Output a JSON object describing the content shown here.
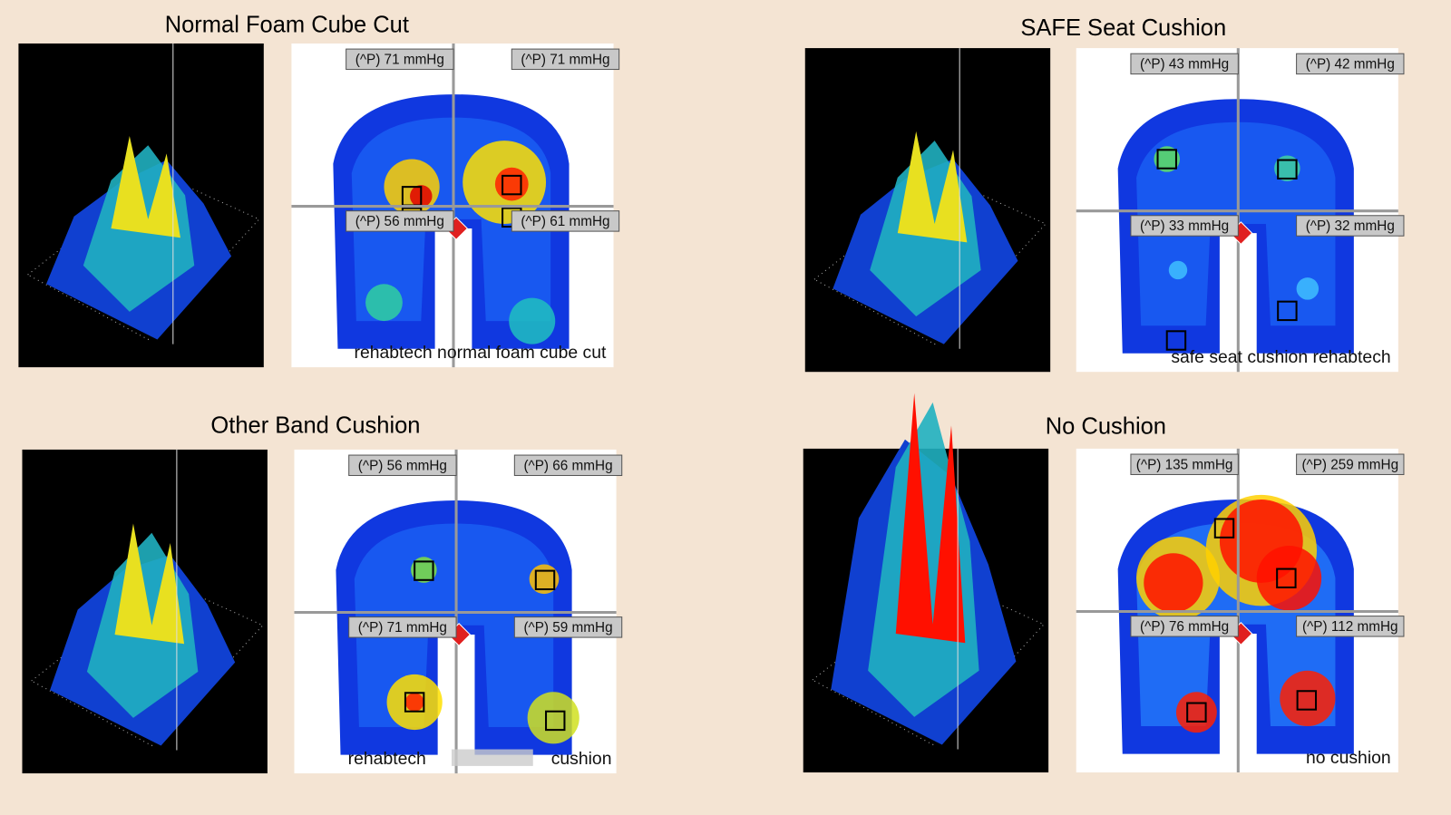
{
  "panels": [
    {
      "title": "Normal Foam Cube Cut",
      "readings": [
        "(^P) 71 mmHg",
        "(^P) 71 mmHg",
        "(^P) 56 mmHg",
        "(^P) 61 mmHg"
      ],
      "caption": [
        "rehabtech normal foam cube cut"
      ]
    },
    {
      "title": "SAFE Seat Cushion",
      "readings": [
        "(^P) 43 mmHg",
        "(^P) 42 mmHg",
        "(^P) 33 mmHg",
        "(^P) 32 mmHg"
      ],
      "caption": [
        "safe seat cushion rehabtech"
      ]
    },
    {
      "title": "Other Band Cushion",
      "readings": [
        "(^P) 56 mmHg",
        "(^P) 66 mmHg",
        "(^P) 71 mmHg",
        "(^P) 59 mmHg"
      ],
      "caption": [
        "rehabtech",
        "cushion"
      ]
    },
    {
      "title": "No Cushion",
      "readings": [
        "(^P) 135 mmHg",
        "(^P) 259 mmHg",
        "(^P) 76 mmHg",
        "(^P) 112 mmHg"
      ],
      "caption": [
        "no cushion"
      ]
    }
  ]
}
